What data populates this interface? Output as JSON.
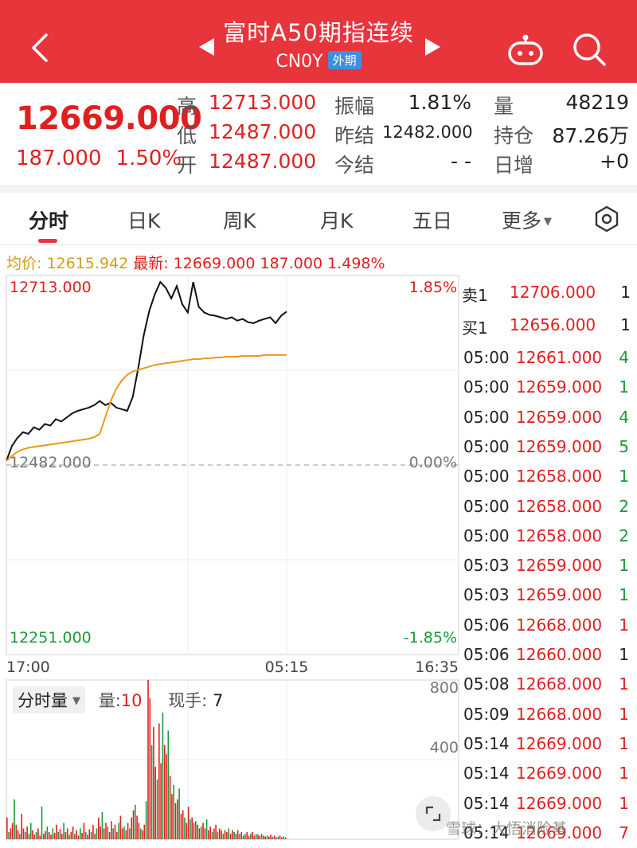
{
  "header": {
    "title": "富时A50期指连续",
    "code": "CN0Y",
    "badge": "外期"
  },
  "quote": {
    "last_price": "12669.000",
    "change": "187.000",
    "change_pct": "1.50%",
    "high_label": "高",
    "high": "12713.000",
    "low_label": "低",
    "low": "12487.000",
    "open_label": "开",
    "open": "12487.000",
    "amplitude_label": "振幅",
    "amplitude": "1.81%",
    "prev_settle_label": "昨结",
    "prev_settle": "12482.000",
    "settle_label": "今结",
    "settle": "- -",
    "volume_label": "量",
    "volume": "48219",
    "open_interest_label": "持仓",
    "open_interest": "87.26万",
    "oi_change_label": "日增",
    "oi_change": "+0"
  },
  "tabs": [
    {
      "label": "分时"
    },
    {
      "label": "日K"
    },
    {
      "label": "周K"
    },
    {
      "label": "月K"
    },
    {
      "label": "五日"
    },
    {
      "label": "更多"
    }
  ],
  "info_line": {
    "avg_label": "均价:",
    "avg": "12615.942",
    "latest_label": "最新:",
    "latest": "12669.000",
    "change": "187.000",
    "change_pct": "1.498%"
  },
  "chart_data": {
    "type": "line",
    "y_high": "12713.000",
    "y_mid": "12482.000",
    "y_low": "12251.000",
    "pct_high": "1.85%",
    "pct_mid": "0.00%",
    "pct_low": "-1.85%",
    "ylim": [
      12251,
      12713
    ],
    "x_ticks": [
      "17:00",
      "05:15",
      "16:35"
    ],
    "series": [
      {
        "values": [
          12487,
          12505,
          12515,
          12522,
          12520,
          12528,
          12525,
          12532,
          12530,
          12538,
          12535,
          12540,
          12545,
          12548,
          12550,
          12552,
          12555,
          12560,
          12555,
          12558,
          12552,
          12550,
          12548,
          12565,
          12600,
          12640,
          12670,
          12690,
          12705,
          12698,
          12685,
          12700,
          12678,
          12668,
          12705,
          12675,
          12668,
          12665,
          12664,
          12662,
          12660,
          12662,
          12658,
          12660,
          12656,
          12655,
          12658,
          12660,
          12662,
          12655,
          12664,
          12669
        ]
      },
      {
        "values": [
          12487,
          12493,
          12498,
          12501,
          12503,
          12504,
          12505,
          12506,
          12507,
          12508,
          12509,
          12510,
          12511,
          12512,
          12513,
          12514,
          12516,
          12520,
          12540,
          12560,
          12575,
          12585,
          12592,
          12596,
          12598,
          12600,
          12602,
          12604,
          12605,
          12606,
          12607,
          12608,
          12609,
          12610,
          12611,
          12611,
          12612,
          12612,
          12613,
          12613,
          12614,
          12614,
          12614,
          12615,
          12615,
          12615,
          12615,
          12616,
          12616,
          12616,
          12616,
          12616
        ]
      }
    ],
    "volume": {
      "ylabel_ticks": [
        "800",
        "400"
      ],
      "ylim": [
        0,
        880
      ],
      "bars": [
        120,
        40,
        60,
        90,
        220,
        80,
        50,
        30,
        140,
        60,
        40,
        70,
        30,
        90,
        50,
        25,
        40,
        60,
        20,
        180,
        30,
        45,
        70,
        40,
        25,
        60,
        35,
        80,
        40,
        55,
        30,
        90,
        40,
        60,
        25,
        40,
        70,
        30,
        50,
        20,
        60,
        35,
        90,
        40,
        25,
        55,
        40,
        80,
        30,
        60,
        120,
        70,
        150,
        60,
        90,
        70,
        40,
        100,
        60,
        80,
        40,
        90,
        130,
        60,
        70,
        50,
        90,
        60,
        120,
        160,
        190,
        130,
        90,
        60,
        50,
        80,
        210,
        880,
        780,
        520,
        620,
        400,
        330,
        640,
        420,
        700,
        520,
        470,
        600,
        350,
        250,
        300,
        200,
        220,
        280,
        140,
        160,
        120,
        90,
        180,
        110,
        120,
        90,
        100,
        80,
        60,
        70,
        90,
        60,
        110,
        50,
        70,
        40,
        60,
        80,
        40,
        60,
        50,
        30,
        50,
        40,
        60,
        30,
        50,
        40,
        30,
        50,
        30,
        40,
        20,
        30,
        40,
        20,
        30,
        40,
        20,
        30,
        25,
        20,
        30,
        20,
        15,
        20,
        15,
        25,
        15,
        20,
        10,
        15,
        20,
        10,
        15,
        10
      ]
    }
  },
  "book": {
    "sell": {
      "label": "卖1",
      "price": "12706.000",
      "qty": "1"
    },
    "buy": {
      "label": "买1",
      "price": "12656.000",
      "qty": "1"
    }
  },
  "trades": [
    {
      "time": "05:00",
      "price": "12661.000",
      "qty": "4",
      "color": "green"
    },
    {
      "time": "05:00",
      "price": "12659.000",
      "qty": "1",
      "color": "green"
    },
    {
      "time": "05:00",
      "price": "12659.000",
      "qty": "4",
      "color": "green"
    },
    {
      "time": "05:00",
      "price": "12659.000",
      "qty": "5",
      "color": "green"
    },
    {
      "time": "05:00",
      "price": "12658.000",
      "qty": "1",
      "color": "green"
    },
    {
      "time": "05:00",
      "price": "12658.000",
      "qty": "2",
      "color": "green"
    },
    {
      "time": "05:00",
      "price": "12658.000",
      "qty": "2",
      "color": "green"
    },
    {
      "time": "05:03",
      "price": "12659.000",
      "qty": "1",
      "color": "green"
    },
    {
      "time": "05:03",
      "price": "12659.000",
      "qty": "1",
      "color": "green"
    },
    {
      "time": "05:06",
      "price": "12668.000",
      "qty": "1",
      "color": "red"
    },
    {
      "time": "05:06",
      "price": "12660.000",
      "qty": "1",
      "color": "dark"
    },
    {
      "time": "05:08",
      "price": "12668.000",
      "qty": "1",
      "color": "red"
    },
    {
      "time": "05:09",
      "price": "12668.000",
      "qty": "1",
      "color": "red"
    },
    {
      "time": "05:14",
      "price": "12669.000",
      "qty": "1",
      "color": "red"
    },
    {
      "time": "05:14",
      "price": "12669.000",
      "qty": "1",
      "color": "red"
    },
    {
      "time": "05:14",
      "price": "12669.000",
      "qty": "1",
      "color": "red"
    },
    {
      "time": "05:14",
      "price": "12669.000",
      "qty": "7",
      "color": "red"
    }
  ],
  "volume_header": {
    "selector": "分时量",
    "vol_label": "量:",
    "vol": "10",
    "hand_label": "现手:",
    "hand": "7"
  },
  "watermark": "雪球：大悟消险基",
  "colors": {
    "header_bg": "#e8353c",
    "up": "#e02020",
    "down": "#1a9a3a",
    "avg_line": "#e89a1c",
    "price_line": "#111111"
  }
}
